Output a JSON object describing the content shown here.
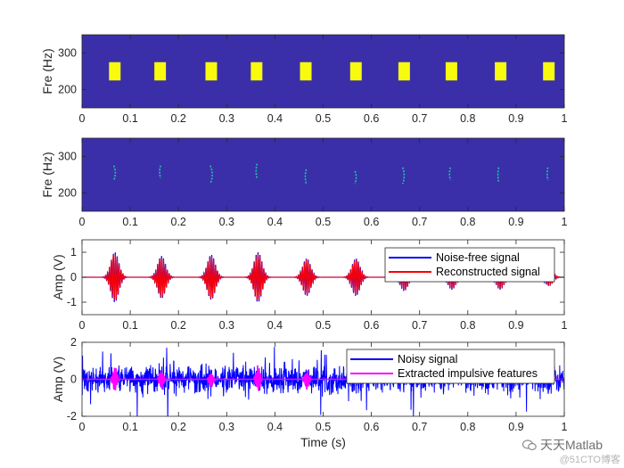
{
  "colors": {
    "background_map": "#3a2fa8",
    "highlight": "#f9fb0e",
    "ridge": "#20c4a8",
    "blue": "#0000ff",
    "red": "#ff0000",
    "magenta": "#ff00ff",
    "axis": "#262626"
  },
  "watermark": {
    "brand": "天天Matlab",
    "source": "@51CTO博客",
    "icon": "wechat-icon"
  },
  "chart_data": [
    {
      "type": "heatmap",
      "ylabel": "Fre (Hz)",
      "xlabel": "",
      "xlim": [
        0,
        1
      ],
      "ylim": [
        150,
        350
      ],
      "xticks": [
        "0",
        "0.1",
        "0.2",
        "0.3",
        "0.4",
        "0.5",
        "0.6",
        "0.7",
        "0.8",
        "0.9",
        "1"
      ],
      "yticks": [
        "200",
        "300"
      ],
      "blocks": [
        {
          "t0": 0.056,
          "t1": 0.08,
          "f0": 225,
          "f1": 275
        },
        {
          "t0": 0.15,
          "t1": 0.174,
          "f0": 225,
          "f1": 275
        },
        {
          "t0": 0.256,
          "t1": 0.28,
          "f0": 225,
          "f1": 275
        },
        {
          "t0": 0.35,
          "t1": 0.374,
          "f0": 225,
          "f1": 275
        },
        {
          "t0": 0.452,
          "t1": 0.476,
          "f0": 225,
          "f1": 275
        },
        {
          "t0": 0.556,
          "t1": 0.58,
          "f0": 225,
          "f1": 275
        },
        {
          "t0": 0.656,
          "t1": 0.68,
          "f0": 225,
          "f1": 275
        },
        {
          "t0": 0.754,
          "t1": 0.778,
          "f0": 225,
          "f1": 275
        },
        {
          "t0": 0.856,
          "t1": 0.88,
          "f0": 225,
          "f1": 275
        },
        {
          "t0": 0.956,
          "t1": 0.98,
          "f0": 225,
          "f1": 275
        }
      ]
    },
    {
      "type": "heatmap",
      "ylabel": "Fre (Hz)",
      "xlabel": "",
      "xlim": [
        0,
        1
      ],
      "ylim": [
        150,
        350
      ],
      "xticks": [
        "0",
        "0.1",
        "0.2",
        "0.3",
        "0.4",
        "0.5",
        "0.6",
        "0.7",
        "0.8",
        "0.9",
        "1"
      ],
      "yticks": [
        "200",
        "300"
      ],
      "ridges": [
        {
          "t": 0.066,
          "f0": 235,
          "f1": 275,
          "bend": 0.006
        },
        {
          "t": 0.163,
          "f0": 240,
          "f1": 275,
          "bend": -0.004
        },
        {
          "t": 0.266,
          "f0": 225,
          "f1": 275,
          "bend": 0.008
        },
        {
          "t": 0.363,
          "f0": 240,
          "f1": 280,
          "bend": -0.004
        },
        {
          "t": 0.465,
          "f0": 225,
          "f1": 265,
          "bend": -0.004
        },
        {
          "t": 0.566,
          "f0": 225,
          "f1": 260,
          "bend": 0.005
        },
        {
          "t": 0.665,
          "f0": 225,
          "f1": 270,
          "bend": 0.006
        },
        {
          "t": 0.764,
          "f0": 235,
          "f1": 270,
          "bend": -0.004
        },
        {
          "t": 0.864,
          "f0": 230,
          "f1": 270,
          "bend": -0.003
        },
        {
          "t": 0.966,
          "f0": 235,
          "f1": 270,
          "bend": -0.003
        }
      ]
    },
    {
      "type": "line",
      "ylabel": "Amp (V)",
      "xlabel": "",
      "xlim": [
        0,
        1
      ],
      "ylim": [
        -1.5,
        1.5
      ],
      "xticks": [
        "0",
        "0.1",
        "0.2",
        "0.3",
        "0.4",
        "0.5",
        "0.6",
        "0.7",
        "0.8",
        "0.9",
        "1"
      ],
      "yticks": [
        "-1",
        "0",
        "1"
      ],
      "legend_position": "top-right",
      "impulses": [
        {
          "t": 0.068,
          "amp": 1.0,
          "width": 0.02
        },
        {
          "t": 0.165,
          "amp": 0.85,
          "width": 0.02
        },
        {
          "t": 0.268,
          "amp": 0.9,
          "width": 0.02
        },
        {
          "t": 0.365,
          "amp": 1.0,
          "width": 0.02
        },
        {
          "t": 0.466,
          "amp": 0.75,
          "width": 0.02
        },
        {
          "t": 0.568,
          "amp": 0.75,
          "width": 0.02
        },
        {
          "t": 0.668,
          "amp": 0.55,
          "width": 0.02
        },
        {
          "t": 0.767,
          "amp": 0.5,
          "width": 0.02
        },
        {
          "t": 0.867,
          "amp": 0.5,
          "width": 0.02
        },
        {
          "t": 0.968,
          "amp": 0.35,
          "width": 0.02
        }
      ],
      "series": [
        {
          "name": "Noise-free signal",
          "color": "#0000ff",
          "scale": 1.0
        },
        {
          "name": "Reconstructed signal",
          "color": "#ff0000",
          "scale": 0.95
        }
      ]
    },
    {
      "type": "line",
      "ylabel": "Amp (V)",
      "xlabel": "Time (s)",
      "xlim": [
        0,
        1
      ],
      "ylim": [
        -2,
        2
      ],
      "xticks": [
        "0",
        "0.1",
        "0.2",
        "0.3",
        "0.4",
        "0.5",
        "0.6",
        "0.7",
        "0.8",
        "0.9",
        "1"
      ],
      "yticks": [
        "-2",
        "0",
        "2"
      ],
      "legend_position": "top-right",
      "noise_level": 0.35,
      "series": [
        {
          "name": "Noisy signal",
          "color": "#0000ff"
        },
        {
          "name": "Extracted impulsive features",
          "color": "#ff00ff"
        }
      ],
      "extracted_peaks": [
        {
          "t": 0.068,
          "amp": 0.9
        },
        {
          "t": 0.165,
          "amp": 0.7
        },
        {
          "t": 0.268,
          "amp": 0.55
        },
        {
          "t": 0.365,
          "amp": 0.9
        },
        {
          "t": 0.466,
          "amp": 0.65
        },
        {
          "t": 0.568,
          "amp": 0.3
        }
      ]
    }
  ]
}
